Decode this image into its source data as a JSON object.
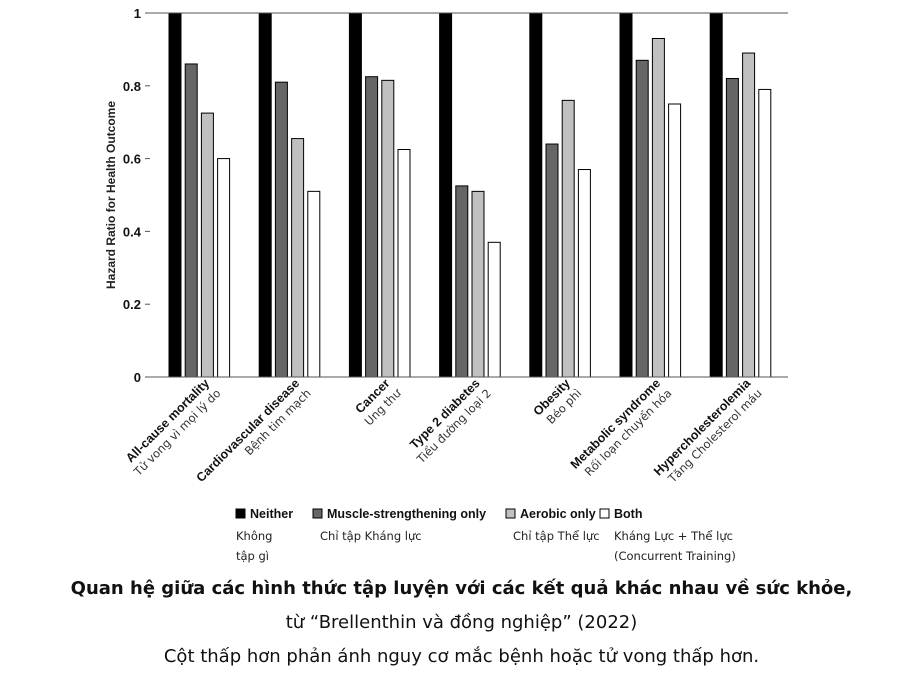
{
  "chart_data": {
    "type": "bar",
    "title": "",
    "xlabel": "",
    "ylabel": "Hazard Ratio for Health Outcome",
    "ylim": [
      0,
      1
    ],
    "yticks": [
      "0",
      "0.2",
      "0.4",
      "0.6",
      "0.8",
      "1"
    ],
    "grid": false,
    "legend_position": "bottom",
    "categories": [
      "All-cause mortality",
      "Cardiovascular disease",
      "Cancer",
      "Type 2 diabetes",
      "Obesity",
      "Metabolic syndrome",
      "Hypercholesterolemia"
    ],
    "categories_vi": [
      "Tử vong vì mọi lý do",
      "Bệnh tim mạch",
      "Ung thư",
      "Tiểu đường loại 2",
      "Béo phì",
      "Rối loạn chuyển hóa",
      "Tăng Cholesterol máu"
    ],
    "series": [
      {
        "name": "Neither",
        "name_vi": [
          "Không",
          "tập gì"
        ],
        "color": "#000000",
        "values": [
          1,
          1,
          1,
          1,
          1,
          1,
          1
        ]
      },
      {
        "name": "Muscle-strengthening only",
        "name_vi": [
          "Chỉ tập Kháng lực"
        ],
        "color": "#666666",
        "values": [
          0.86,
          0.81,
          0.825,
          0.525,
          0.64,
          0.87,
          0.82
        ]
      },
      {
        "name": "Aerobic only",
        "name_vi": [
          "Chỉ tập Thể lực"
        ],
        "color": "#c0c0c0",
        "values": [
          0.725,
          0.655,
          0.815,
          0.51,
          0.76,
          0.93,
          0.89
        ]
      },
      {
        "name": "Both",
        "name_vi": [
          "Kháng Lực + Thể lực",
          "(Concurrent Training)"
        ],
        "color": "#ffffff",
        "values": [
          0.6,
          0.51,
          0.625,
          0.37,
          0.57,
          0.75,
          0.79
        ]
      }
    ]
  },
  "caption": {
    "line1": "Quan hệ giữa các hình thức tập luyện với các kết quả khác nhau về sức khỏe,",
    "line2": "từ “Brellenthin và đồng nghiệp” (2022)",
    "line3": "Cột thấp hơn phản ánh nguy cơ mắc bệnh hoặc tử vong thấp hơn."
  }
}
